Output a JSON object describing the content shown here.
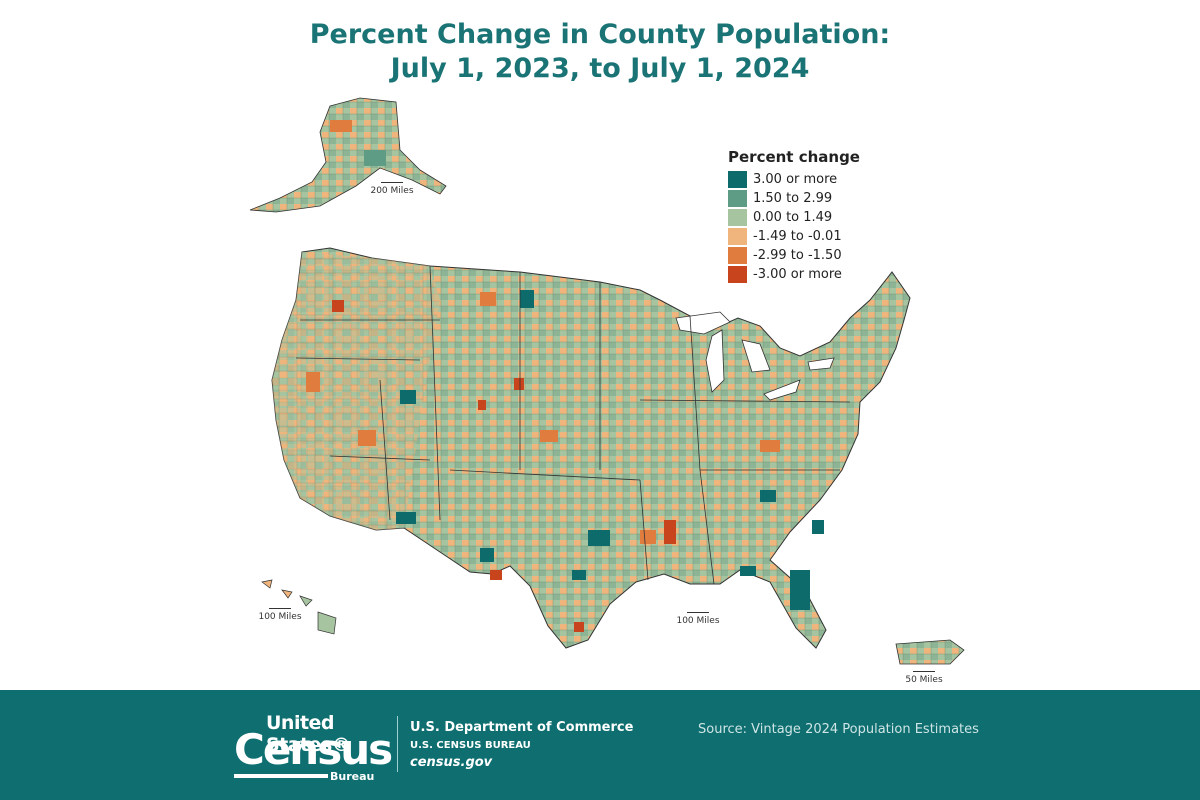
{
  "header": {
    "title_line1": "Percent Change in County Population:",
    "title_line2": "July 1, 2023, to July 1, 2024"
  },
  "legend": {
    "title": "Percent change",
    "items": [
      {
        "label": "3.00 or more",
        "color": "#0d6b6b"
      },
      {
        "label": "1.50 to 2.99",
        "color": "#5e9c85"
      },
      {
        "label": "0.00 to 1.49",
        "color": "#a7c4a0"
      },
      {
        "label": "-1.49 to -0.01",
        "color": "#f0b57c"
      },
      {
        "label": "-2.99 to -1.50",
        "color": "#e07c3e"
      },
      {
        "label": "-3.00 or more",
        "color": "#c8441c"
      }
    ]
  },
  "scales": {
    "alaska": "200 Miles",
    "hawaii": "100 Miles",
    "conus": "100 Miles",
    "puerto_rico": "50 Miles"
  },
  "footer": {
    "logo_line1": "United States®",
    "logo_line2": "Census",
    "logo_line3": "Bureau",
    "dept": "U.S. Department of Commerce",
    "bureau": "U.S. CENSUS BUREAU",
    "site": "census.gov",
    "source": "Source: Vintage 2024 Population Estimates"
  },
  "regions": {
    "conus": "contiguous-us",
    "alaska": "alaska",
    "hawaii": "hawaii",
    "puerto_rico": "puerto-rico"
  }
}
